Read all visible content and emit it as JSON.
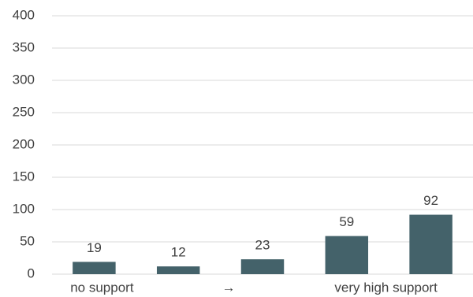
{
  "chart_data": {
    "type": "bar",
    "categories": [
      "no support",
      null,
      "→",
      null,
      "very high support"
    ],
    "values": [
      19,
      12,
      23,
      59,
      92
    ],
    "color": "#44626a",
    "ylim": [
      0,
      400
    ],
    "yticks": [
      0,
      50,
      100,
      150,
      200,
      250,
      300,
      350,
      400
    ],
    "grid": true
  }
}
